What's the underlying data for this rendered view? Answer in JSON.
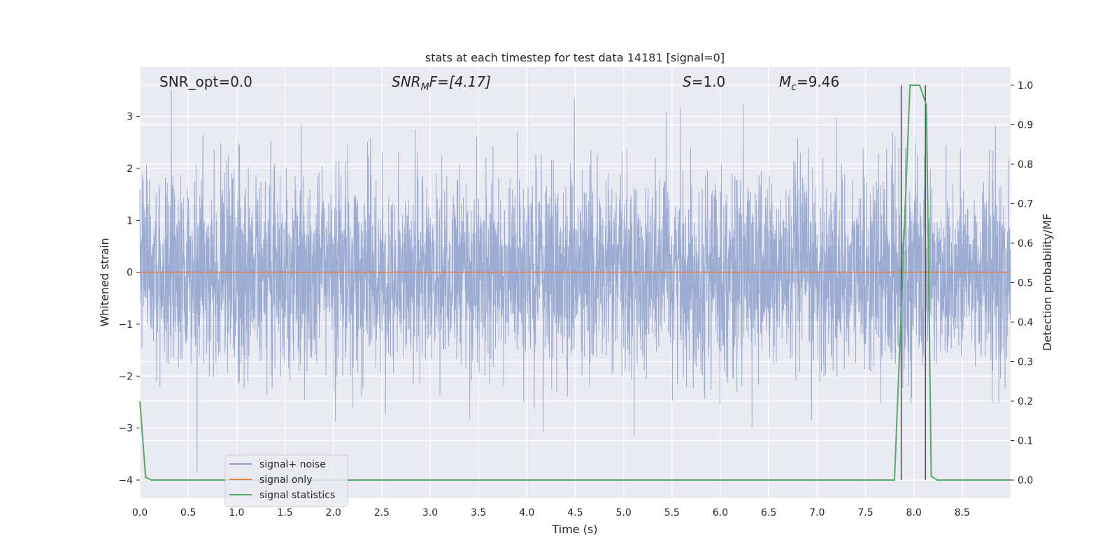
{
  "chart_data": {
    "type": "line",
    "title": "stats at each timestep for test data 14181 [signal=0]",
    "xlabel": "Time (s)",
    "ylabel": "Whitened strain",
    "y2label": "Detection probability/MF",
    "xlim": [
      0,
      9
    ],
    "ylim": [
      -4.35,
      3.95
    ],
    "y2lim": [
      -0.046,
      1.046
    ],
    "xticks": [
      0.0,
      0.5,
      1.0,
      1.5,
      2.0,
      2.5,
      3.0,
      3.5,
      4.0,
      4.5,
      5.0,
      5.5,
      6.0,
      6.5,
      7.0,
      7.5,
      8.0,
      8.5
    ],
    "xtick_labels": [
      "0.0",
      "0.5",
      "1.0",
      "1.5",
      "2.0",
      "2.5",
      "3.0",
      "3.5",
      "4.0",
      "4.5",
      "5.0",
      "5.5",
      "6.0",
      "6.5",
      "7.0",
      "7.5",
      "8.0",
      "8.5"
    ],
    "yticks": [
      3,
      2,
      1,
      0,
      -1,
      -2,
      -3,
      -4
    ],
    "ytick_labels": [
      "3",
      "2",
      "1",
      "0",
      "−1",
      "−2",
      "−3",
      "−4"
    ],
    "y2ticks": [
      1.0,
      0.9,
      0.8,
      0.7,
      0.6,
      0.5,
      0.4,
      0.3,
      0.2,
      0.1,
      0.0
    ],
    "y2tick_labels": [
      "1.0",
      "0.9",
      "0.8",
      "0.7",
      "0.6",
      "0.5",
      "0.4",
      "0.3",
      "0.2",
      "0.1",
      "0.0"
    ],
    "grid": true,
    "legend_position": "lower-left",
    "annotations": {
      "snr_opt": "SNR_opt=0.0",
      "snr_mf_base": "SNR",
      "snr_mf_sub": "M",
      "snr_mf_rest": "F=[4.17]",
      "s_var": "S",
      "s_rest": "=1.0",
      "mc_base": "M",
      "mc_sub": "c",
      "mc_rest": "=9.46"
    },
    "series": [
      {
        "name": "signal+ noise",
        "color": "#8da0cb",
        "note_values": "dense noise, approx std 0.95, range about -4.0 to 3.5 over 0-9 s",
        "noise_std": 0.95,
        "noise_range": [
          -4.0,
          3.5
        ]
      },
      {
        "name": "signal only",
        "color": "#dd8452",
        "x": [
          0,
          9
        ],
        "y": [
          0,
          0
        ]
      },
      {
        "name": "signal statistics",
        "color": "#55a868",
        "axis": "right",
        "x": [
          0.0,
          0.06,
          0.12,
          7.8,
          7.88,
          7.96,
          8.06,
          8.13,
          8.18,
          8.24,
          9.0
        ],
        "y": [
          0.2,
          0.007,
          0.0,
          0.0,
          0.5,
          1.0,
          1.0,
          0.95,
          0.01,
          0.0,
          0.0
        ]
      }
    ],
    "vlines": [
      {
        "x": 7.87,
        "ymin": 0.0,
        "ymax": 1.0,
        "color": "#555555"
      },
      {
        "x": 8.12,
        "ymin": 0.0,
        "ymax": 1.0,
        "color": "#555555"
      }
    ]
  }
}
